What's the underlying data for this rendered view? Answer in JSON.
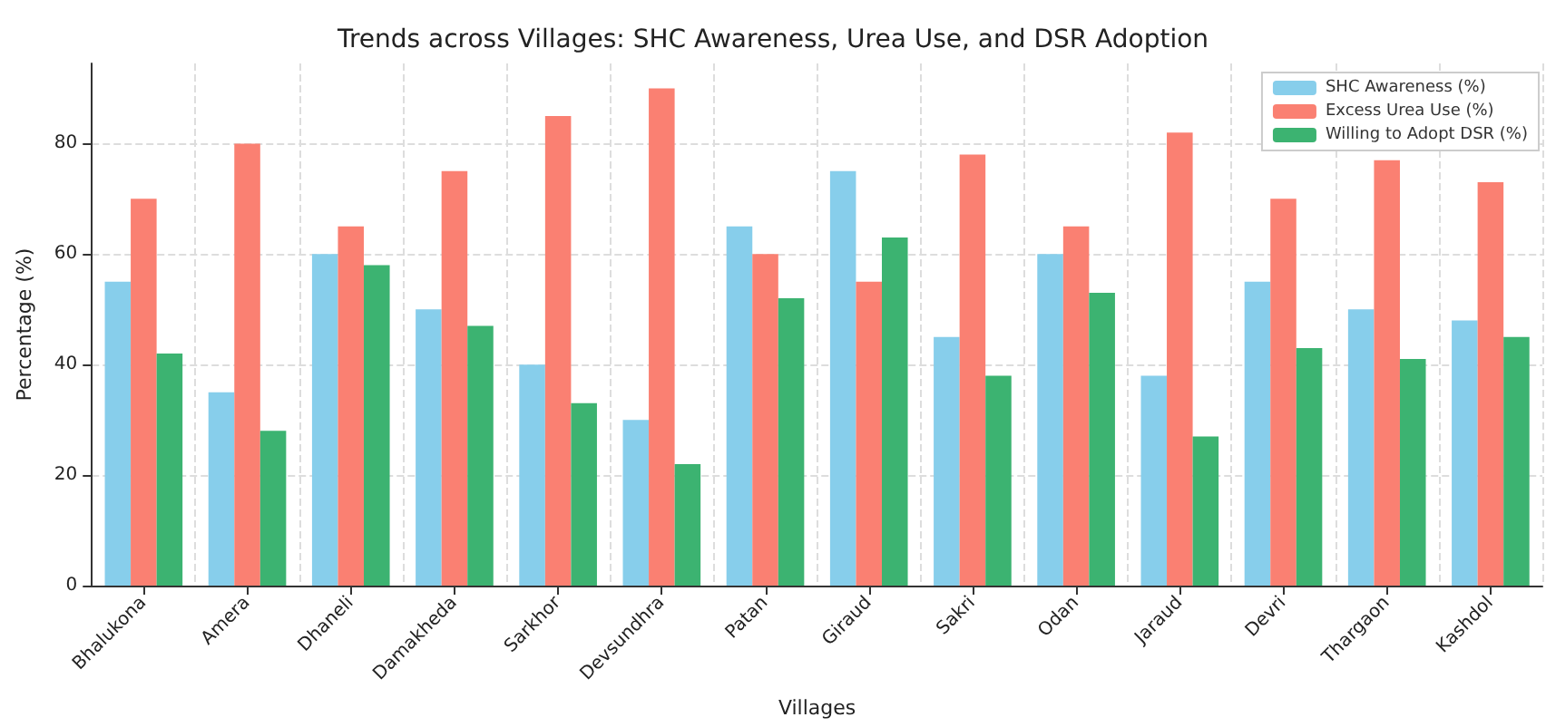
{
  "chart_data": {
    "type": "bar",
    "title": "Trends across Villages: SHC Awareness, Urea Use, and DSR Adoption",
    "xlabel": "Villages",
    "ylabel": "Percentage (%)",
    "categories": [
      "Bhalukona",
      "Amera",
      "Dhaneli",
      "Damakheda",
      "Sarkhor",
      "Devsundhra",
      "Patan",
      "Giraud",
      "Sakri",
      "Odan",
      "Jaraud",
      "Devri",
      "Thargaon",
      "Kashdol"
    ],
    "series": [
      {
        "name": "SHC Awareness (%)",
        "color": "#87ceeb",
        "values": [
          55,
          35,
          60,
          50,
          40,
          30,
          65,
          75,
          45,
          60,
          38,
          55,
          50,
          48
        ]
      },
      {
        "name": "Excess Urea Use (%)",
        "color": "#fa8072",
        "values": [
          70,
          80,
          65,
          75,
          85,
          90,
          60,
          55,
          78,
          65,
          82,
          70,
          77,
          73
        ]
      },
      {
        "name": "Willing to Adopt DSR (%)",
        "color": "#3cb371",
        "values": [
          42,
          28,
          58,
          47,
          33,
          22,
          52,
          63,
          38,
          53,
          27,
          43,
          41,
          45
        ]
      }
    ],
    "ylim": [
      0,
      94.5
    ],
    "yticks": [
      0,
      20,
      40,
      60,
      80
    ],
    "grid": true,
    "legend": "top right"
  }
}
